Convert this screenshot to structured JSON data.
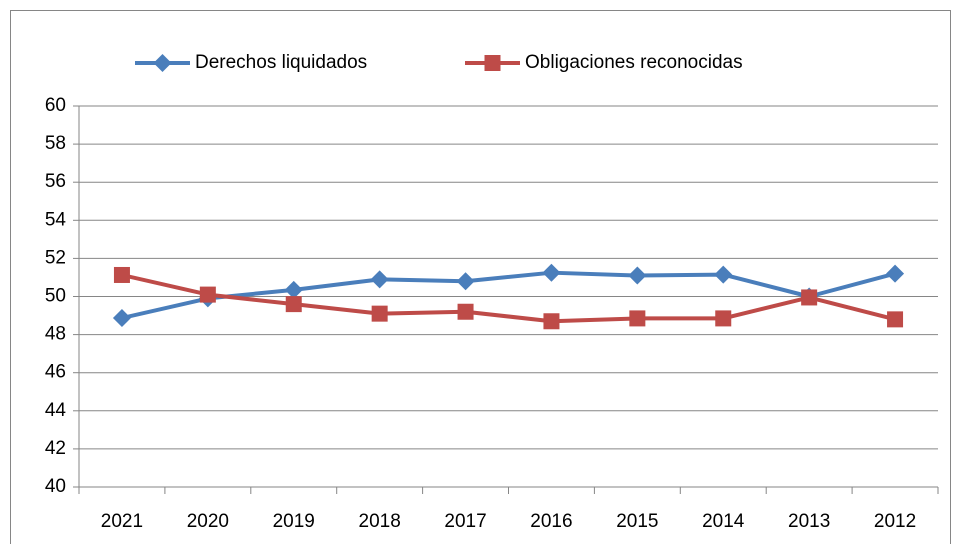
{
  "chart_data": {
    "type": "line",
    "categories": [
      "2021",
      "2020",
      "2019",
      "2018",
      "2017",
      "2016",
      "2015",
      "2014",
      "2013",
      "2012"
    ],
    "series": [
      {
        "name": "Derechos liquidados",
        "color": "#4a7ebb",
        "values": [
          48.87,
          49.9,
          50.35,
          50.9,
          50.8,
          51.25,
          51.1,
          51.15,
          50.0,
          51.2
        ]
      },
      {
        "name": "Obligaciones reconocidas",
        "color": "#be4b48",
        "values": [
          51.13,
          50.1,
          49.6,
          49.1,
          49.2,
          48.7,
          48.85,
          48.85,
          49.95,
          48.8
        ]
      }
    ],
    "ylim": [
      40,
      60
    ],
    "yticks": [
      40,
      42,
      44,
      46,
      48,
      50,
      52,
      54,
      56,
      58,
      60
    ],
    "grid": true,
    "legend": "top"
  }
}
